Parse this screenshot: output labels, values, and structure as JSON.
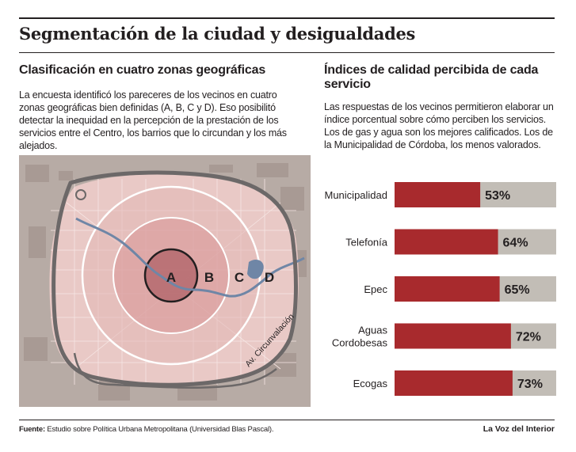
{
  "title": "Segmentación de la ciudad y desigualdades",
  "left": {
    "heading": "Clasificación en cuatro zonas geográficas",
    "text": "La encuesta identificó los pareceres de los vecinos en cuatro zonas geográficas bien definidas (A, B, C y D). Eso posibilitó detectar la inequidad en la percepción de la prestación de los servicios entre el Centro, los barrios que lo circundan y los más alejados."
  },
  "map": {
    "zones": [
      "A",
      "B",
      "C",
      "D"
    ],
    "road_label": "Av. Circunvalación",
    "colors": {
      "background": "#b7aba5",
      "blocks": "#a89a94",
      "city_fill": "#e9c9c6",
      "zone_c": "#dfa9a7",
      "zone_b": "#c98587",
      "zone_a": "#b66f73",
      "river": "#6f86a6",
      "road": "#6c6868"
    }
  },
  "right": {
    "heading": "Índices de calidad percibida de cada servicio",
    "text": "Las respuestas de los vecinos permitieron elaborar un índice porcentual sobre cómo perciben los servicios. Los de gas y agua son los mejores calificados. Los de la Municipalidad de Córdoba, los menos valorados."
  },
  "chart_data": {
    "type": "bar",
    "orientation": "horizontal",
    "categories": [
      "Municipalidad",
      "Telefonía",
      "Epec",
      "Aguas Cordobesas",
      "Ecogas"
    ],
    "values": [
      53,
      64,
      65,
      72,
      73
    ],
    "value_labels": [
      "53%",
      "64%",
      "65%",
      "72%",
      "73%"
    ],
    "xlim": [
      0,
      100
    ],
    "colors": {
      "bar": "#a82a2d",
      "track": "#c2bdb6"
    }
  },
  "footer": {
    "source_label": "Fuente:",
    "source_text": " Estudio sobre Política Urbana Metropolitana (Universidad Blas Pascal).",
    "brand": "La Voz del Interior"
  }
}
